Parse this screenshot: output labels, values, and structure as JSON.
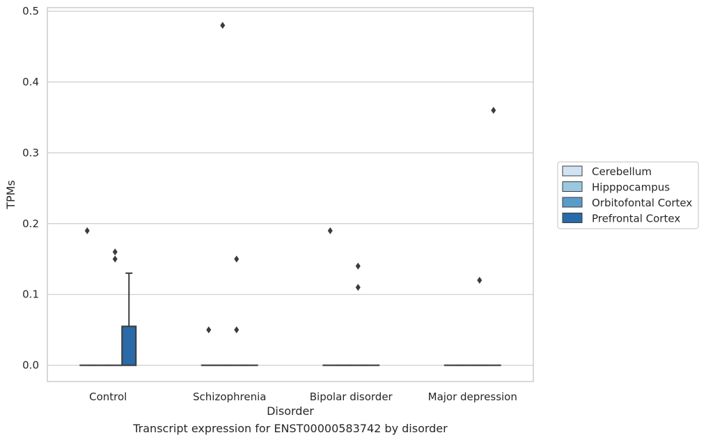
{
  "caption": "Transcript expression for ENST00000583742 by disorder",
  "chart_data": {
    "type": "box",
    "xlabel": "Disorder",
    "ylabel": "TPMs",
    "ylim": [
      -0.023,
      0.505
    ],
    "yticks": [
      0.0,
      0.1,
      0.2,
      0.3,
      0.4,
      0.5
    ],
    "ytick_labels": [
      "0.0",
      "0.1",
      "0.2",
      "0.3",
      "0.4",
      "0.5"
    ],
    "grid": "horizontal",
    "legend_position": "right",
    "categories": [
      "Control",
      "Schizophrenia",
      "Bipolar disorder",
      "Major depression"
    ],
    "series": [
      {
        "name": "Cerebellum",
        "color": "#d1e2f2",
        "boxes": [
          {
            "q1": 0,
            "median": 0,
            "q3": 0,
            "whisker_low": 0,
            "whisker_high": 0,
            "outliers": [
              0.19
            ]
          },
          {
            "q1": 0,
            "median": 0,
            "q3": 0,
            "whisker_low": 0,
            "whisker_high": 0,
            "outliers": [
              0.05
            ]
          },
          {
            "q1": 0,
            "median": 0,
            "q3": 0,
            "whisker_low": 0,
            "whisker_high": 0,
            "outliers": [
              0.19
            ]
          },
          {
            "q1": 0,
            "median": 0,
            "q3": 0,
            "whisker_low": 0,
            "whisker_high": 0,
            "outliers": []
          }
        ]
      },
      {
        "name": "Hipppocampus",
        "color": "#9ac8e0",
        "boxes": [
          {
            "q1": 0,
            "median": 0,
            "q3": 0,
            "whisker_low": 0,
            "whisker_high": 0,
            "outliers": []
          },
          {
            "q1": 0,
            "median": 0,
            "q3": 0,
            "whisker_low": 0,
            "whisker_high": 0,
            "outliers": [
              0.48
            ]
          },
          {
            "q1": 0,
            "median": 0,
            "q3": 0,
            "whisker_low": 0,
            "whisker_high": 0,
            "outliers": []
          },
          {
            "q1": 0,
            "median": 0,
            "q3": 0,
            "whisker_low": 0,
            "whisker_high": 0,
            "outliers": []
          }
        ]
      },
      {
        "name": "Orbitofontal Cortex",
        "color": "#5a9bc8",
        "boxes": [
          {
            "q1": 0,
            "median": 0,
            "q3": 0,
            "whisker_low": 0,
            "whisker_high": 0,
            "outliers": [
              0.16,
              0.15
            ]
          },
          {
            "q1": 0,
            "median": 0,
            "q3": 0,
            "whisker_low": 0,
            "whisker_high": 0,
            "outliers": [
              0.15,
              0.05
            ]
          },
          {
            "q1": 0,
            "median": 0,
            "q3": 0,
            "whisker_low": 0,
            "whisker_high": 0,
            "outliers": [
              0.14,
              0.11
            ]
          },
          {
            "q1": 0,
            "median": 0,
            "q3": 0,
            "whisker_low": 0,
            "whisker_high": 0,
            "outliers": [
              0.12
            ]
          }
        ]
      },
      {
        "name": "Prefrontal Cortex",
        "color": "#2a6aa8",
        "boxes": [
          {
            "q1": 0,
            "median": 0,
            "q3": 0.055,
            "whisker_low": 0,
            "whisker_high": 0.13,
            "outliers": []
          },
          {
            "q1": 0,
            "median": 0,
            "q3": 0,
            "whisker_low": 0,
            "whisker_high": 0,
            "outliers": []
          },
          {
            "q1": 0,
            "median": 0,
            "q3": 0,
            "whisker_low": 0,
            "whisker_high": 0,
            "outliers": []
          },
          {
            "q1": 0,
            "median": 0,
            "q3": 0,
            "whisker_low": 0,
            "whisker_high": 0,
            "outliers": [
              0.36
            ]
          }
        ]
      }
    ]
  }
}
